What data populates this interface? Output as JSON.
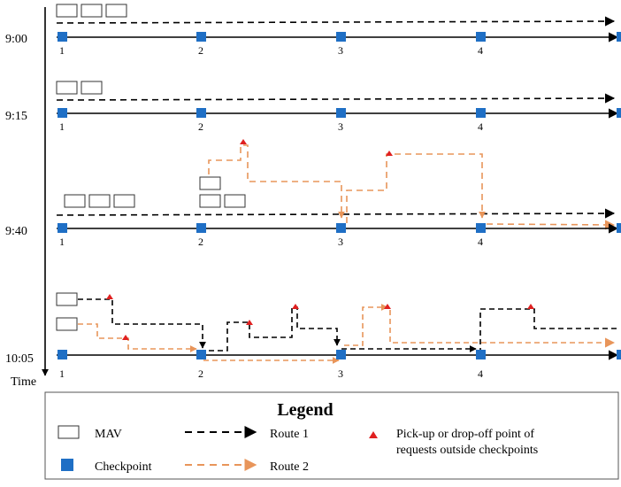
{
  "timeline": {
    "axis_label": "Time",
    "time_labels": [
      "9:00",
      "9:15",
      "9:40",
      "10:05"
    ],
    "checkpoint_labels": [
      "1",
      "2",
      "3",
      "4"
    ]
  },
  "legend": {
    "title": "Legend",
    "mav_label": "MAV",
    "checkpoint_label": "Checkpoint",
    "route1_label": "Route 1",
    "route2_label": "Route 2",
    "pickup_label_line1": "Pick-up or drop-off point of",
    "pickup_label_line2": "requests outside checkpoints"
  },
  "colors": {
    "checkpoint": "#1f6fc5",
    "route1": "#000000",
    "route2": "#e8955a",
    "pickup_marker": "#e02020",
    "mav_outline": "#333333"
  }
}
